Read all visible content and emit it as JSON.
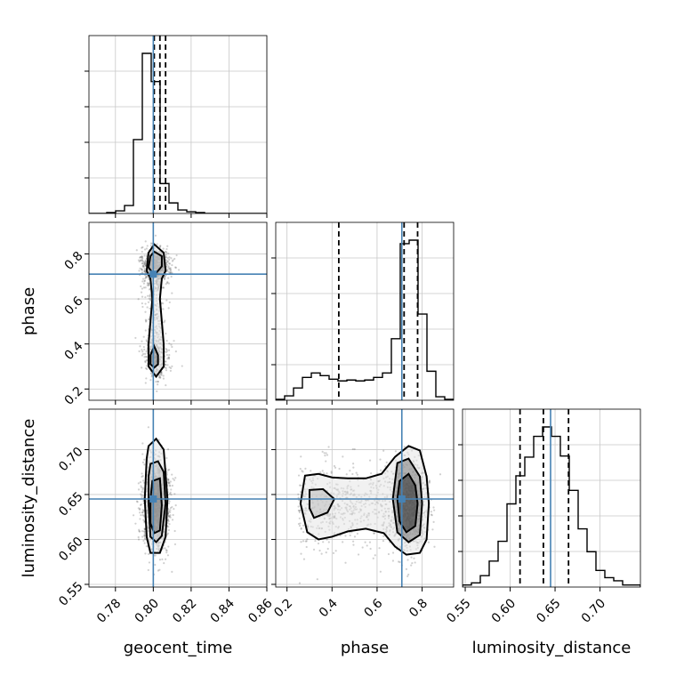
{
  "chart_data": {
    "type": "corner",
    "parameters": [
      "geocent_time",
      "phase",
      "luminosity_distance"
    ],
    "truths": {
      "geocent_time": 0.8,
      "phase": 0.71,
      "luminosity_distance": 0.645
    },
    "truth_color": "#4682b4",
    "quantiles": {
      "geocent_time": [
        0.8005,
        0.8035,
        0.8065
      ],
      "phase": [
        0.43,
        0.72,
        0.78
      ],
      "luminosity_distance": [
        0.611,
        0.637,
        0.665
      ]
    },
    "ranges": {
      "geocent_time": [
        0.766,
        0.86
      ],
      "phase": [
        0.15,
        0.94
      ],
      "luminosity_distance": [
        0.547,
        0.745
      ]
    },
    "ticks": {
      "geocent_time": [
        0.78,
        0.8,
        0.82,
        0.84,
        0.86
      ],
      "phase": [
        0.2,
        0.4,
        0.6,
        0.8
      ],
      "luminosity_distance": [
        0.55,
        0.6,
        0.65,
        0.7
      ]
    },
    "tick_labels": {
      "geocent_time": [
        "0.78",
        "0.80",
        "0.82",
        "0.84",
        "0.86"
      ],
      "phase": [
        "0.2",
        "0.4",
        "0.6",
        "0.8"
      ],
      "luminosity_distance": [
        "0.55",
        "0.60",
        "0.65",
        "0.70"
      ]
    },
    "histograms": {
      "geocent_time": {
        "edges": [
          0.766,
          0.7707,
          0.7754,
          0.7801,
          0.7848,
          0.7895,
          0.7942,
          0.7989,
          0.8036,
          0.8083,
          0.813,
          0.8177,
          0.8224,
          0.8271,
          0.8318,
          0.8365,
          0.8412,
          0.8459,
          0.8506,
          0.8553,
          0.86
        ],
        "counts": [
          0,
          0,
          1,
          3,
          9,
          84,
          182,
          150,
          34,
          12,
          4,
          2,
          1,
          0,
          0,
          0,
          0,
          0,
          0,
          0
        ]
      },
      "phase": {
        "edges": [
          0.15,
          0.1895,
          0.229,
          0.2685,
          0.308,
          0.3475,
          0.387,
          0.4265,
          0.466,
          0.5055,
          0.545,
          0.5845,
          0.624,
          0.6635,
          0.703,
          0.7425,
          0.782,
          0.8215,
          0.861,
          0.9005,
          0.94
        ],
        "counts": [
          1,
          5,
          14,
          26,
          31,
          28,
          24,
          22,
          23,
          22,
          23,
          26,
          31,
          70,
          178,
          182,
          98,
          33,
          4,
          1
        ]
      },
      "luminosity_distance": {
        "edges": [
          0.547,
          0.5569,
          0.5668,
          0.5767,
          0.5866,
          0.5965,
          0.6064,
          0.6163,
          0.6262,
          0.6361,
          0.646,
          0.6559,
          0.6658,
          0.6757,
          0.6856,
          0.6955,
          0.7054,
          0.7153,
          0.7252,
          0.7351,
          0.745
        ],
        "counts": [
          2,
          4,
          11,
          25,
          44,
          80,
          107,
          125,
          145,
          154,
          145,
          126,
          93,
          56,
          34,
          16,
          9,
          6,
          2,
          2
        ]
      }
    },
    "contours": [
      {
        "x": "geocent_time",
        "y": "phase",
        "levels": [
          [
            [
              0.7975,
              0.805
            ],
            [
              0.8005,
              0.8425
            ],
            [
              0.8055,
              0.805
            ],
            [
              0.8065,
              0.725
            ],
            [
              0.8045,
              0.69
            ],
            [
              0.8035,
              0.6
            ],
            [
              0.8045,
              0.5
            ],
            [
              0.8055,
              0.4
            ],
            [
              0.8055,
              0.3
            ],
            [
              0.8015,
              0.255
            ],
            [
              0.7975,
              0.3
            ],
            [
              0.7975,
              0.4
            ],
            [
              0.7985,
              0.5
            ],
            [
              0.7995,
              0.6
            ],
            [
              0.7985,
              0.69
            ],
            [
              0.7965,
              0.725
            ]
          ],
          [
            [
              0.7985,
              0.79
            ],
            [
              0.8005,
              0.81
            ],
            [
              0.8045,
              0.79
            ],
            [
              0.8045,
              0.745
            ],
            [
              0.8005,
              0.705
            ],
            [
              0.7975,
              0.74
            ]
          ],
          [
            [
              0.8005,
              0.39
            ],
            [
              0.8025,
              0.35
            ],
            [
              0.8025,
              0.31
            ],
            [
              0.8005,
              0.295
            ],
            [
              0.7985,
              0.31
            ],
            [
              0.7985,
              0.35
            ]
          ]
        ]
      },
      {
        "x": "geocent_time",
        "y": "luminosity_distance",
        "levels": [
          [
            [
              0.7975,
              0.704
            ],
            [
              0.8015,
              0.712
            ],
            [
              0.8055,
              0.7
            ],
            [
              0.8075,
              0.645
            ],
            [
              0.8065,
              0.603
            ],
            [
              0.8035,
              0.585
            ],
            [
              0.7985,
              0.585
            ],
            [
              0.7965,
              0.603
            ],
            [
              0.7955,
              0.645
            ],
            [
              0.7965,
              0.69
            ]
          ],
          [
            [
              0.7985,
              0.684
            ],
            [
              0.8025,
              0.687
            ],
            [
              0.8055,
              0.675
            ],
            [
              0.8065,
              0.64
            ],
            [
              0.8045,
              0.604
            ],
            [
              0.8015,
              0.597
            ],
            [
              0.7985,
              0.603
            ],
            [
              0.7975,
              0.64
            ],
            [
              0.7975,
              0.67
            ]
          ],
          [
            [
              0.7995,
              0.665
            ],
            [
              0.8035,
              0.668
            ],
            [
              0.8045,
              0.638
            ],
            [
              0.8035,
              0.61
            ],
            [
              0.8005,
              0.607
            ],
            [
              0.7985,
              0.618
            ],
            [
              0.7985,
              0.645
            ]
          ]
        ]
      },
      {
        "x": "phase",
        "y": "luminosity_distance",
        "levels": [
          [
            [
              0.28,
              0.671
            ],
            [
              0.34,
              0.673
            ],
            [
              0.4,
              0.669
            ],
            [
              0.47,
              0.668
            ],
            [
              0.55,
              0.668
            ],
            [
              0.62,
              0.673
            ],
            [
              0.68,
              0.692
            ],
            [
              0.74,
              0.704
            ],
            [
              0.79,
              0.699
            ],
            [
              0.82,
              0.67
            ],
            [
              0.83,
              0.64
            ],
            [
              0.82,
              0.6
            ],
            [
              0.79,
              0.585
            ],
            [
              0.73,
              0.583
            ],
            [
              0.68,
              0.592
            ],
            [
              0.63,
              0.607
            ],
            [
              0.55,
              0.612
            ],
            [
              0.47,
              0.609
            ],
            [
              0.4,
              0.603
            ],
            [
              0.34,
              0.6
            ],
            [
              0.29,
              0.608
            ],
            [
              0.26,
              0.64
            ]
          ],
          [
            [
              0.3,
              0.655
            ],
            [
              0.36,
              0.656
            ],
            [
              0.41,
              0.645
            ],
            [
              0.38,
              0.63
            ],
            [
              0.32,
              0.624
            ],
            [
              0.3,
              0.635
            ]
          ],
          [
            [
              0.69,
              0.685
            ],
            [
              0.74,
              0.69
            ],
            [
              0.79,
              0.67
            ],
            [
              0.8,
              0.64
            ],
            [
              0.79,
              0.605
            ],
            [
              0.74,
              0.597
            ],
            [
              0.69,
              0.608
            ],
            [
              0.67,
              0.645
            ]
          ],
          [
            [
              0.7,
              0.665
            ],
            [
              0.74,
              0.673
            ],
            [
              0.77,
              0.66
            ],
            [
              0.78,
              0.64
            ],
            [
              0.77,
              0.615
            ],
            [
              0.73,
              0.608
            ],
            [
              0.7,
              0.62
            ],
            [
              0.69,
              0.645
            ]
          ]
        ]
      }
    ],
    "scatter_seed": 12345,
    "grid": true
  }
}
